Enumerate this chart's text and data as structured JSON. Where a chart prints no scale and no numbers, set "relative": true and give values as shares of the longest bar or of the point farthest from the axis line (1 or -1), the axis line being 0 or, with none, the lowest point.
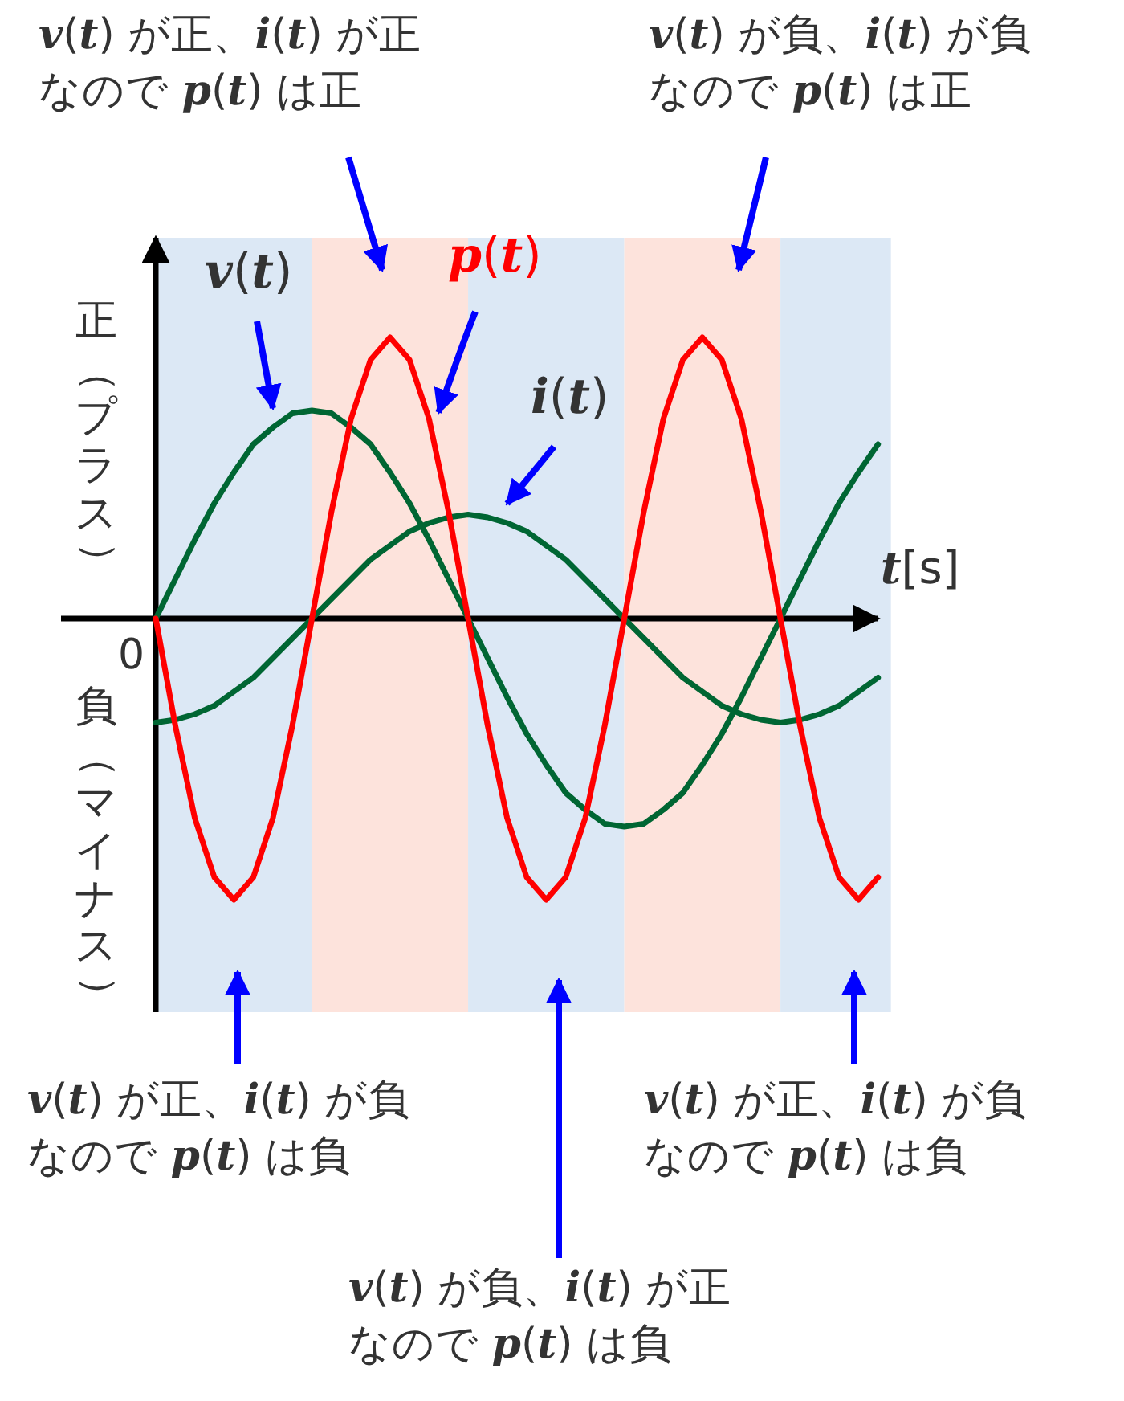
{
  "chart_data": {
    "type": "line",
    "relative": true,
    "xlabel": "*t*[s]",
    "categories": [
      null,
      null,
      null,
      null,
      null,
      null,
      null,
      null,
      null,
      null,
      null,
      null,
      null,
      null,
      null,
      null,
      null,
      null,
      null,
      null,
      null,
      null,
      null,
      null,
      null,
      null,
      null,
      null,
      null,
      null,
      null,
      null,
      null,
      null,
      null,
      null,
      null,
      null
    ],
    "series": [
      {
        "name": "*v*(*t*)",
        "color": "#006633",
        "values": [
          0,
          0.14,
          0.28,
          0.41,
          0.52,
          0.62,
          0.68,
          0.73,
          0.74,
          0.73,
          0.68,
          0.62,
          0.52,
          0.41,
          0.28,
          0.14,
          0,
          -0.14,
          -0.28,
          -0.41,
          -0.52,
          -0.62,
          -0.68,
          -0.73,
          -0.74,
          -0.73,
          -0.68,
          -0.62,
          -0.52,
          -0.41,
          -0.28,
          -0.14,
          0,
          0.14,
          0.28,
          0.41,
          0.52,
          0.62
        ]
      },
      {
        "name": "*i*(*t*)",
        "color": "#006633",
        "values": [
          -0.37,
          -0.36,
          -0.34,
          -0.31,
          -0.26,
          -0.21,
          -0.14,
          -0.07,
          0,
          0.07,
          0.14,
          0.21,
          0.26,
          0.31,
          0.34,
          0.36,
          0.37,
          0.36,
          0.34,
          0.31,
          0.26,
          0.21,
          0.14,
          0.07,
          0,
          -0.07,
          -0.14,
          -0.21,
          -0.26,
          -0.31,
          -0.34,
          -0.36,
          -0.37,
          -0.36,
          -0.34,
          -0.31,
          -0.26,
          -0.21
        ]
      },
      {
        "name": "*p*(*t*)",
        "color": "#ff0000",
        "values": [
          0,
          -0.38,
          -0.71,
          -0.92,
          -1,
          -0.92,
          -0.71,
          -0.38,
          0,
          0.38,
          0.71,
          0.92,
          1,
          0.92,
          0.71,
          0.38,
          0,
          -0.38,
          -0.71,
          -0.92,
          -1,
          -0.92,
          -0.71,
          -0.38,
          0,
          0.38,
          0.71,
          0.92,
          1,
          0.92,
          0.71,
          0.38,
          0,
          -0.38,
          -0.71,
          -0.92,
          -1,
          -0.92
        ]
      }
    ],
    "annotations": [
      "*v*(*t*) が正、*i*(*t*) が正なので *p*(*t*) は正",
      "*v*(*t*) が負、*i*(*t*) が負なので *p*(*t*) は正",
      "*v*(*t*) が正、*i*(*t*) が負なので *p*(*t*) は負",
      "*v*(*t*) が正、*i*(*t*) が負なので *p*(*t*) は負",
      "*v*(*t*) が負、*i*(*t*) が正なので *p*(*t*) は負",
      "正（プラス）",
      "負（マイナス）",
      "0"
    ]
  }
}
